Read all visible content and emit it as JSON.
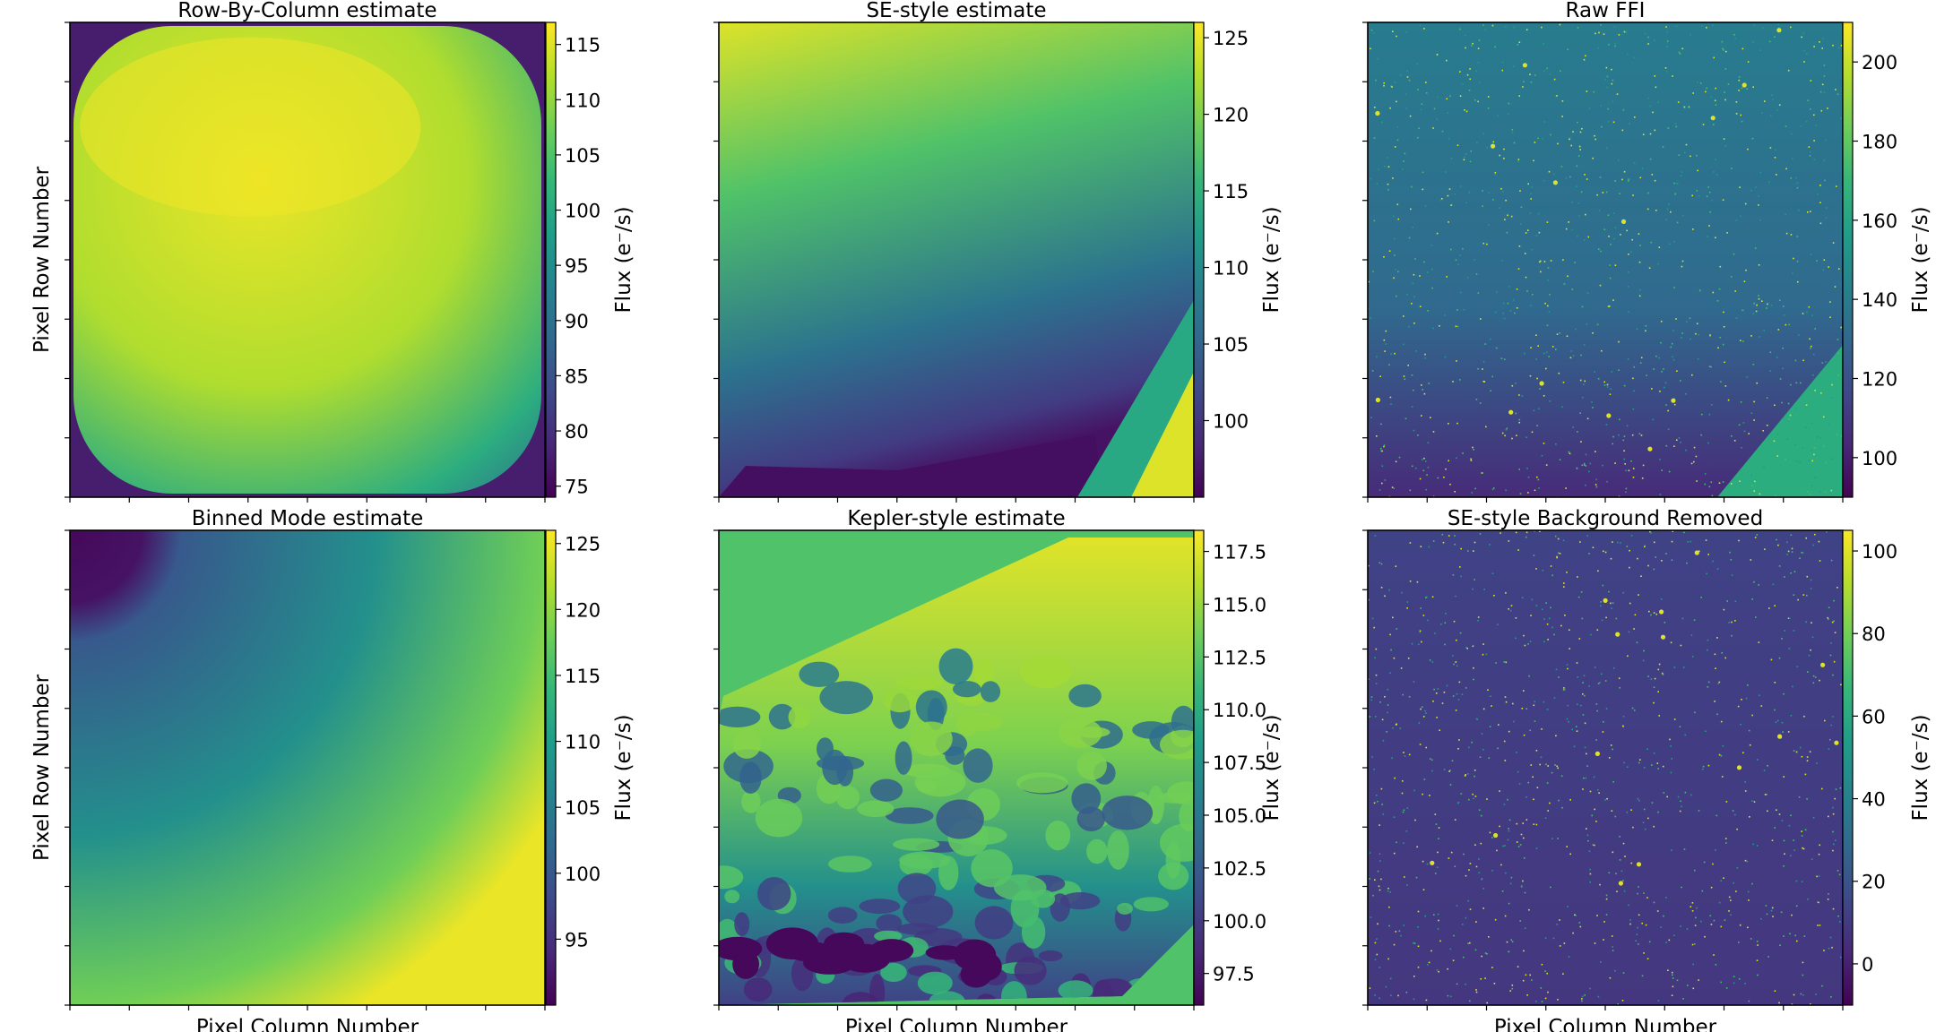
{
  "colormap": "viridis",
  "colors": {
    "viridis": [
      "#440154",
      "#482878",
      "#3e4989",
      "#31688e",
      "#26828e",
      "#1f9e89",
      "#35b779",
      "#6ece58",
      "#b5de2b",
      "#fde725"
    ]
  },
  "chart_data": [
    {
      "type": "heatmap",
      "title": "Row-By-Column estimate",
      "xlabel": "",
      "ylabel": "Pixel Row Number",
      "colorbar_label": "Flux (e⁻/s)",
      "colorbar_ticks": [
        "115",
        "110",
        "105",
        "100",
        "95",
        "90",
        "85",
        "80",
        "75"
      ],
      "colorbar_tick_values": [
        115,
        110,
        105,
        100,
        95,
        90,
        85,
        80,
        75
      ],
      "colorbar_range": [
        74,
        117
      ],
      "pattern": "rounded square, bright in upper-left interior, dark corners",
      "x_tick_count": 9,
      "y_tick_count": 9
    },
    {
      "type": "heatmap",
      "title": "SE-style estimate",
      "xlabel": "",
      "ylabel": "",
      "colorbar_label": "Flux (e⁻/s)",
      "colorbar_ticks": [
        "125",
        "120",
        "115",
        "110",
        "105",
        "100"
      ],
      "colorbar_tick_values": [
        125,
        120,
        115,
        110,
        105,
        100
      ],
      "colorbar_range": [
        95,
        126
      ],
      "pattern": "bright top-left decreasing to dark bottom, bright bottom-right corner wedge",
      "x_tick_count": 9,
      "y_tick_count": 9
    },
    {
      "type": "heatmap",
      "title": "Raw FFI",
      "xlabel": "",
      "ylabel": "",
      "colorbar_label": "Flux (e⁻/s)",
      "colorbar_ticks": [
        "200",
        "180",
        "160",
        "140",
        "120",
        "100"
      ],
      "colorbar_tick_values": [
        200,
        180,
        160,
        140,
        120,
        100
      ],
      "colorbar_range": [
        90,
        210
      ],
      "pattern": "star field over teal background, darker bottom, bright bottom-right wedge",
      "x_tick_count": 9,
      "y_tick_count": 9
    },
    {
      "type": "heatmap",
      "title": "Binned Mode estimate",
      "xlabel": "Pixel Column Number",
      "ylabel": "Pixel Row Number",
      "colorbar_label": "Flux (e⁻/s)",
      "colorbar_ticks": [
        "125",
        "120",
        "115",
        "110",
        "105",
        "100",
        "95"
      ],
      "colorbar_tick_values": [
        125,
        120,
        115,
        110,
        105,
        100,
        95
      ],
      "colorbar_range": [
        90,
        126
      ],
      "pattern": "radial gradient from dark top-left corner to bright right side",
      "x_tick_count": 9,
      "y_tick_count": 9
    },
    {
      "type": "heatmap",
      "title": "Kepler-style estimate",
      "xlabel": "Pixel Column Number",
      "ylabel": "",
      "colorbar_label": "Flux (e⁻/s)",
      "colorbar_ticks": [
        "117.5",
        "115.0",
        "112.5",
        "110.0",
        "107.5",
        "105.0",
        "102.5",
        "100.0",
        "97.5"
      ],
      "colorbar_tick_values": [
        117.5,
        115.0,
        112.5,
        110.0,
        107.5,
        105.0,
        102.5,
        100.0,
        97.5
      ],
      "colorbar_range": [
        96,
        118.5
      ],
      "pattern": "green fill outside a slanted polygon containing mottled yellow-to-dark texture",
      "x_tick_count": 9,
      "y_tick_count": 9
    },
    {
      "type": "heatmap",
      "title": "SE-style Background Removed",
      "xlabel": "Pixel Column Number",
      "ylabel": "",
      "colorbar_label": "Flux (e⁻/s)",
      "colorbar_ticks": [
        "100",
        "80",
        "60",
        "40",
        "20",
        "0"
      ],
      "colorbar_tick_values": [
        100,
        80,
        60,
        40,
        20,
        0
      ],
      "colorbar_range": [
        -10,
        105
      ],
      "pattern": "star field over dark blue-purple background",
      "x_tick_count": 9,
      "y_tick_count": 9
    }
  ]
}
